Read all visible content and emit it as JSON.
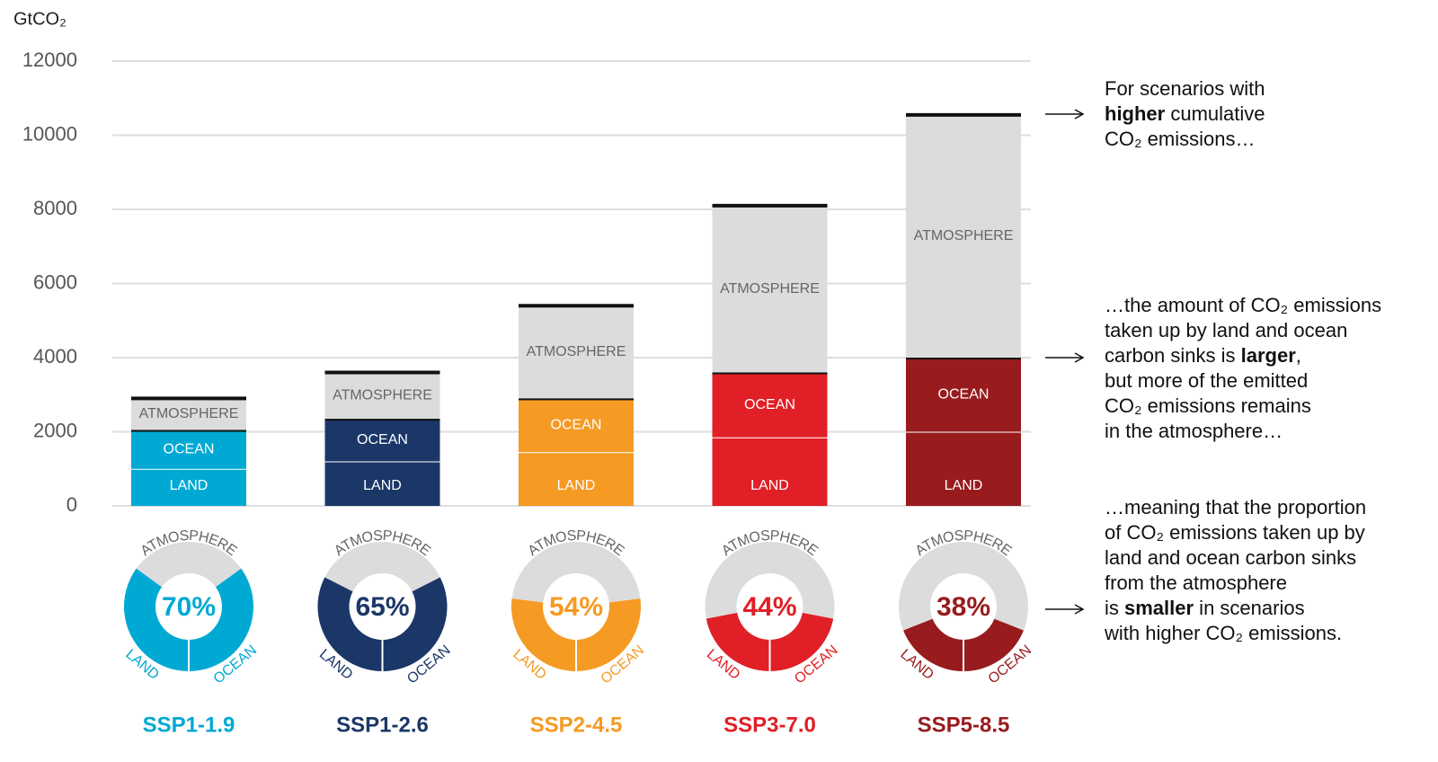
{
  "chart_data": {
    "type": "bar",
    "y_label": "GtCO₂",
    "categories": [
      "SSP1-1.9",
      "SSP1-2.6",
      "SSP2-4.5",
      "SSP3-7.0",
      "SSP5-8.5"
    ],
    "category_colors": [
      "#00a9d4",
      "#1b3768",
      "#f59a23",
      "#e11f26",
      "#981b1e"
    ],
    "series": [
      {
        "name": "LAND",
        "values": [
          1000,
          1200,
          1450,
          1850,
          2000
        ]
      },
      {
        "name": "OCEAN",
        "values": [
          1050,
          1150,
          1450,
          1750,
          2000
        ]
      },
      {
        "name": "ATMOSPHERE",
        "color": "#dcdcdc",
        "values": [
          850,
          1250,
          2500,
          4500,
          6550
        ]
      }
    ],
    "sink_percentages": [
      70,
      65,
      54,
      44,
      38
    ],
    "sink_percentage_labels": [
      "70%",
      "65%",
      "54%",
      "44%",
      "38%"
    ],
    "ylim": [
      0,
      12000
    ],
    "yticks": [
      0,
      2000,
      4000,
      6000,
      8000,
      10000,
      12000
    ],
    "grid": true,
    "annotations": [
      {
        "lines": [
          [
            {
              "text": "For scenarios with"
            }
          ],
          [
            {
              "text": "higher",
              "bold": true
            },
            {
              "text": " cumulative"
            }
          ],
          [
            {
              "text": "CO₂ emissions…"
            }
          ]
        ]
      },
      {
        "lines": [
          [
            {
              "text": "…the amount of CO₂ emissions"
            }
          ],
          [
            {
              "text": "taken up by land and ocean"
            }
          ],
          [
            {
              "text": "carbon sinks is "
            },
            {
              "text": "larger",
              "bold": true
            },
            {
              "text": ","
            }
          ],
          [
            {
              "text": "but more of the emitted"
            }
          ],
          [
            {
              "text": "CO₂ emissions remains"
            }
          ],
          [
            {
              "text": "in the atmosphere…"
            }
          ]
        ]
      },
      {
        "lines": [
          [
            {
              "text": "…meaning that the proportion"
            }
          ],
          [
            {
              "text": "of CO₂ emissions taken up by"
            }
          ],
          [
            {
              "text": "land and ocean carbon sinks"
            }
          ],
          [
            {
              "text": "from the atmosphere"
            }
          ],
          [
            {
              "text": "is "
            },
            {
              "text": "smaller",
              "bold": true
            },
            {
              "text": " in scenarios"
            }
          ],
          [
            {
              "text": "with higher CO₂ emissions."
            }
          ]
        ]
      }
    ]
  }
}
